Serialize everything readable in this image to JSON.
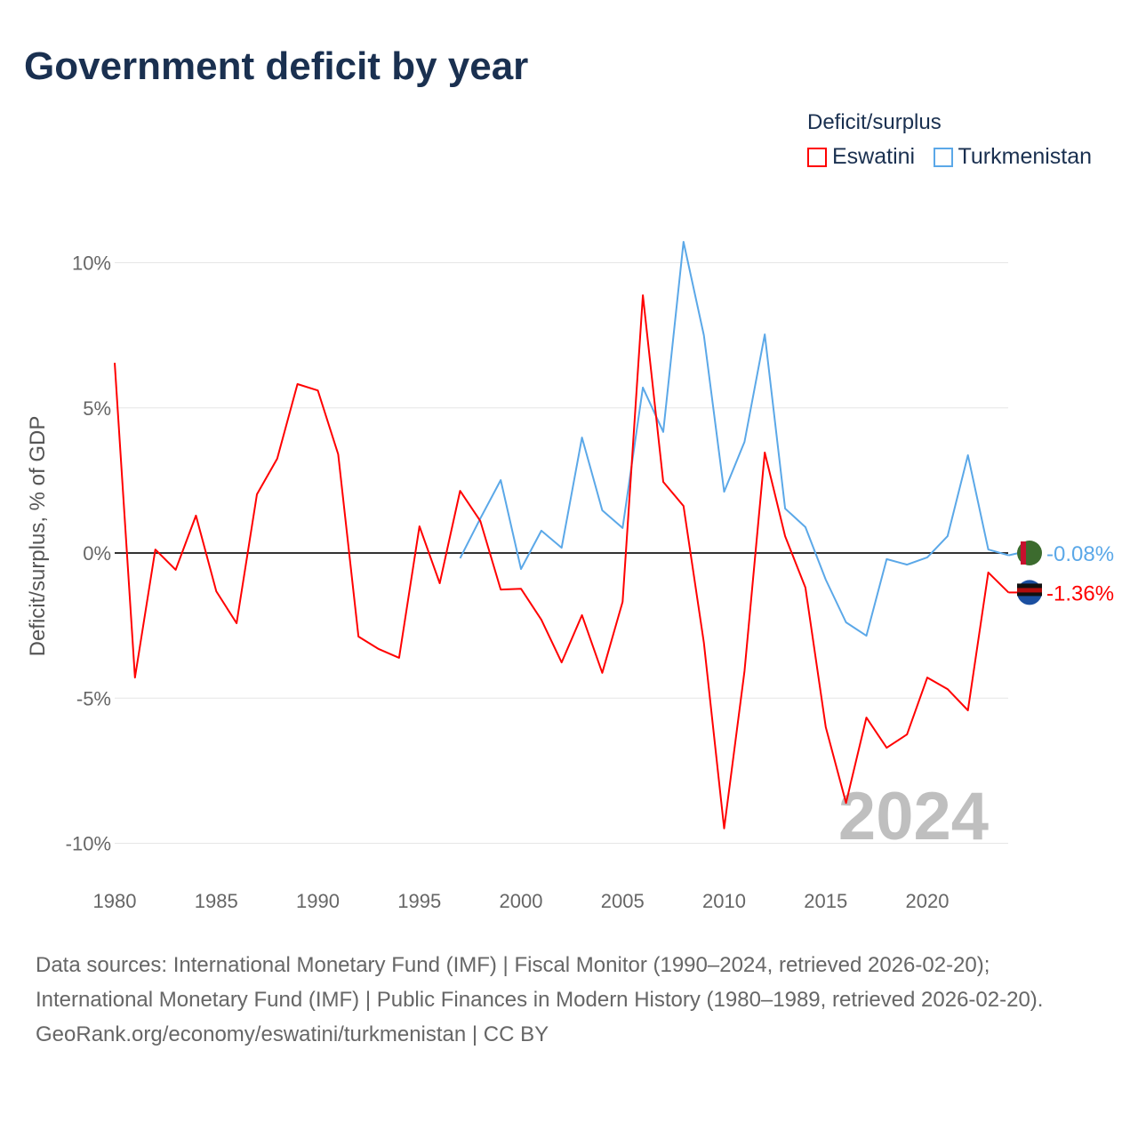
{
  "title": "Government deficit by year",
  "legend": {
    "title": "Deficit/surplus",
    "items": [
      "Eswatini",
      "Turkmenistan"
    ]
  },
  "footer": {
    "sources": "Data sources: International Monetary Fund (IMF) | Fiscal Monitor (1990–2024, retrieved 2026-02-20); International Monetary Fund (IMF) | Public Finances in Modern History (1980–1989, retrieved 2026-02-20).",
    "credit": "GeoRank.org/economy/eswatini/turkmenistan | CC BY"
  },
  "chart_data": {
    "type": "line",
    "title": "Government deficit by year",
    "xlabel": "",
    "ylabel": "Deficit/surplus, % of GDP",
    "xlim": [
      1980,
      2024
    ],
    "ylim": [
      -11,
      11
    ],
    "xticks": [
      1980,
      1985,
      1990,
      1995,
      2000,
      2005,
      2010,
      2015,
      2020
    ],
    "xtick_labels": [
      "1980",
      "1985",
      "1990",
      "1995",
      "2000",
      "2005",
      "2010",
      "2015",
      "2020"
    ],
    "yticks": [
      10,
      5,
      0,
      -5,
      -10
    ],
    "ytick_labels": [
      "10%",
      "5%",
      "0%",
      "-5%",
      "-10%"
    ],
    "year_watermark": "2024",
    "grid": true,
    "legend_position": "top-right",
    "series": [
      {
        "name": "Eswatini",
        "color": "#ff0000",
        "end_label": "-1.36%",
        "start_year": 1980,
        "values": [
          6.55,
          -4.29,
          0.12,
          -0.58,
          1.29,
          -1.32,
          -2.42,
          2.02,
          3.25,
          5.82,
          5.6,
          3.4,
          -2.88,
          -3.31,
          -3.61,
          0.92,
          -1.04,
          2.14,
          1.1,
          -1.26,
          -1.23,
          -2.3,
          -3.77,
          -2.14,
          -4.13,
          -1.68,
          8.88,
          2.45,
          1.62,
          -3.09,
          -9.49,
          -4.07,
          3.46,
          0.58,
          -1.19,
          -6.0,
          -8.61,
          -5.67,
          -6.71,
          -6.25,
          -4.29,
          -4.69,
          -5.42,
          -0.67,
          -1.36
        ]
      },
      {
        "name": "Turkmenistan",
        "color": "#5ba8e8",
        "end_label": "-0.08%",
        "start_year": 1997,
        "values": [
          -0.18,
          1.19,
          2.51,
          -0.55,
          0.77,
          0.18,
          3.98,
          1.47,
          0.86,
          5.7,
          4.17,
          10.72,
          7.5,
          2.11,
          3.83,
          7.53,
          1.53,
          0.89,
          -0.92,
          -2.39,
          -2.85,
          -0.21,
          -0.4,
          -0.15,
          0.58,
          3.37,
          0.12,
          -0.08
        ]
      }
    ]
  }
}
